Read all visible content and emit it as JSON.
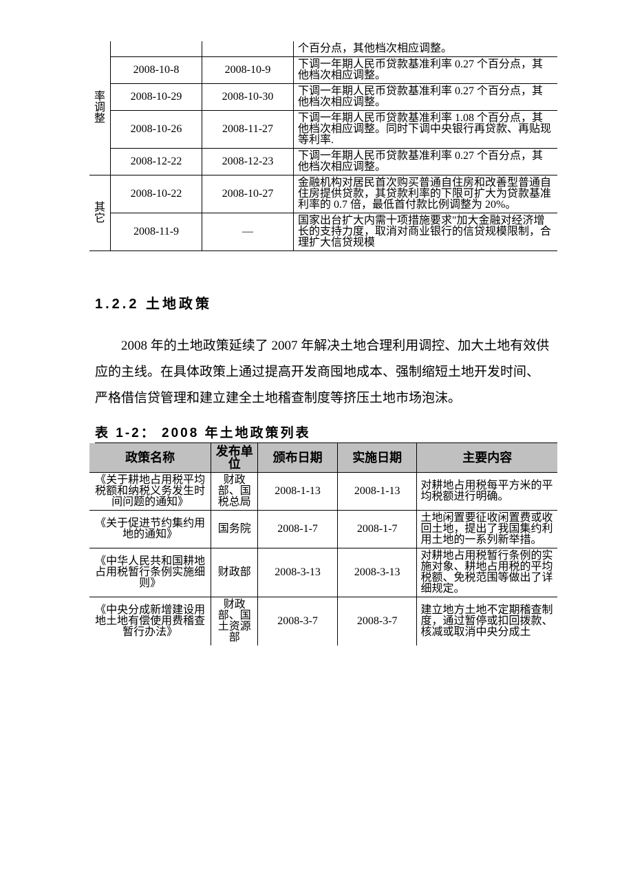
{
  "table1": {
    "categories": [
      {
        "label": "率调整",
        "rowspan": 5
      },
      {
        "label": "其它",
        "rowspan": 2
      }
    ],
    "rows": [
      {
        "cat_idx": 0,
        "cat_first": true,
        "date1": "",
        "date2": "",
        "content": "个百分点，其他档次相应调整。",
        "top_partial": true
      },
      {
        "date1": "2008-10-8",
        "date2": "2008-10-9",
        "content": "下调一年期人民币贷款基准利率 0.27 个百分点，其他档次相应调整。"
      },
      {
        "date1": "2008-10-29",
        "date2": "2008-10-30",
        "content": "下调一年期人民币贷款基准利率 0.27 个百分点，其他档次相应调整。"
      },
      {
        "date1": "2008-10-26",
        "date2": "2008-11-27",
        "content": "下调一年期人民币贷款基准利率 1.08 个百分点，其他档次相应调整。同时下调中央银行再贷款、再贴现等利率."
      },
      {
        "date1": "2008-12-22",
        "date2": "2008-12-23",
        "content": "下调一年期人民币贷款基准利率 0.27 个百分点，其他档次相应调整。"
      },
      {
        "cat_idx": 1,
        "cat_first": true,
        "date1": "2008-10-22",
        "date2": "2008-10-27",
        "content": "金融机构对居民首次购买普通自住房和改善型普通自住房提供贷款，其贷款利率的下限可扩大为贷款基准利率的 0.7 倍，最低首付款比例调整为 20%。"
      },
      {
        "date1": "2008-11-9",
        "date2": "—",
        "content": "国家出台扩大内需十项措施要求\"加大金融对经济增长的支持力度，取消对商业银行的信贷规模限制，合理扩大信贷规模",
        "last": true
      }
    ]
  },
  "section": {
    "heading": "1.2.2  土地政策",
    "paragraph": "2008 年的土地政策延续了 2007 年解决土地合理利用调控、加大土地有效供应的主线。在具体政策上通过提高开发商囤地成本、强制缩短土地开发时间、严格借信贷管理和建立建全土地稽查制度等挤压土地市场泡沫。"
  },
  "table2": {
    "caption": "表 1-2：  2008 年土地政策列表",
    "headers": [
      "政策名称",
      "发布单位",
      "颁布日期",
      "实施日期",
      "主要内容"
    ],
    "rows": [
      {
        "name": "《关于耕地占用税平均税额和纳税义务发生时间问题的通知》",
        "unit": "财政部、国税总局",
        "date1": "2008-1-13",
        "date2": "2008-1-13",
        "content": "对耕地占用税每平方米的平均税额进行明确。"
      },
      {
        "name": "《关于促进节约集约用地的通知》",
        "unit": "国务院",
        "date1": "2008-1-7",
        "date2": "2008-1-7",
        "content": "土地闲置要征收闲置费或收回土地，提出了我国集约利用土地的一系列新举措。"
      },
      {
        "name": "《中华人民共和国耕地占用税暂行条例实施细则》",
        "unit": "财政部",
        "date1": "2008-3-13",
        "date2": "2008-3-13",
        "content": "对耕地占用税暂行条例的实施对象、耕地占用税的平均税额、免税范围等做出了详细规定。"
      },
      {
        "name": "《中央分成新增建设用地土地有偿使用费稽查暂行办法》",
        "unit": "财政部、国土资源部",
        "date1": "2008-3-7",
        "date2": "2008-3-7",
        "content": "建立地方土地不定期稽查制度，通过暂停或扣回拨款、核减或取消中央分成土",
        "last": true
      }
    ]
  }
}
